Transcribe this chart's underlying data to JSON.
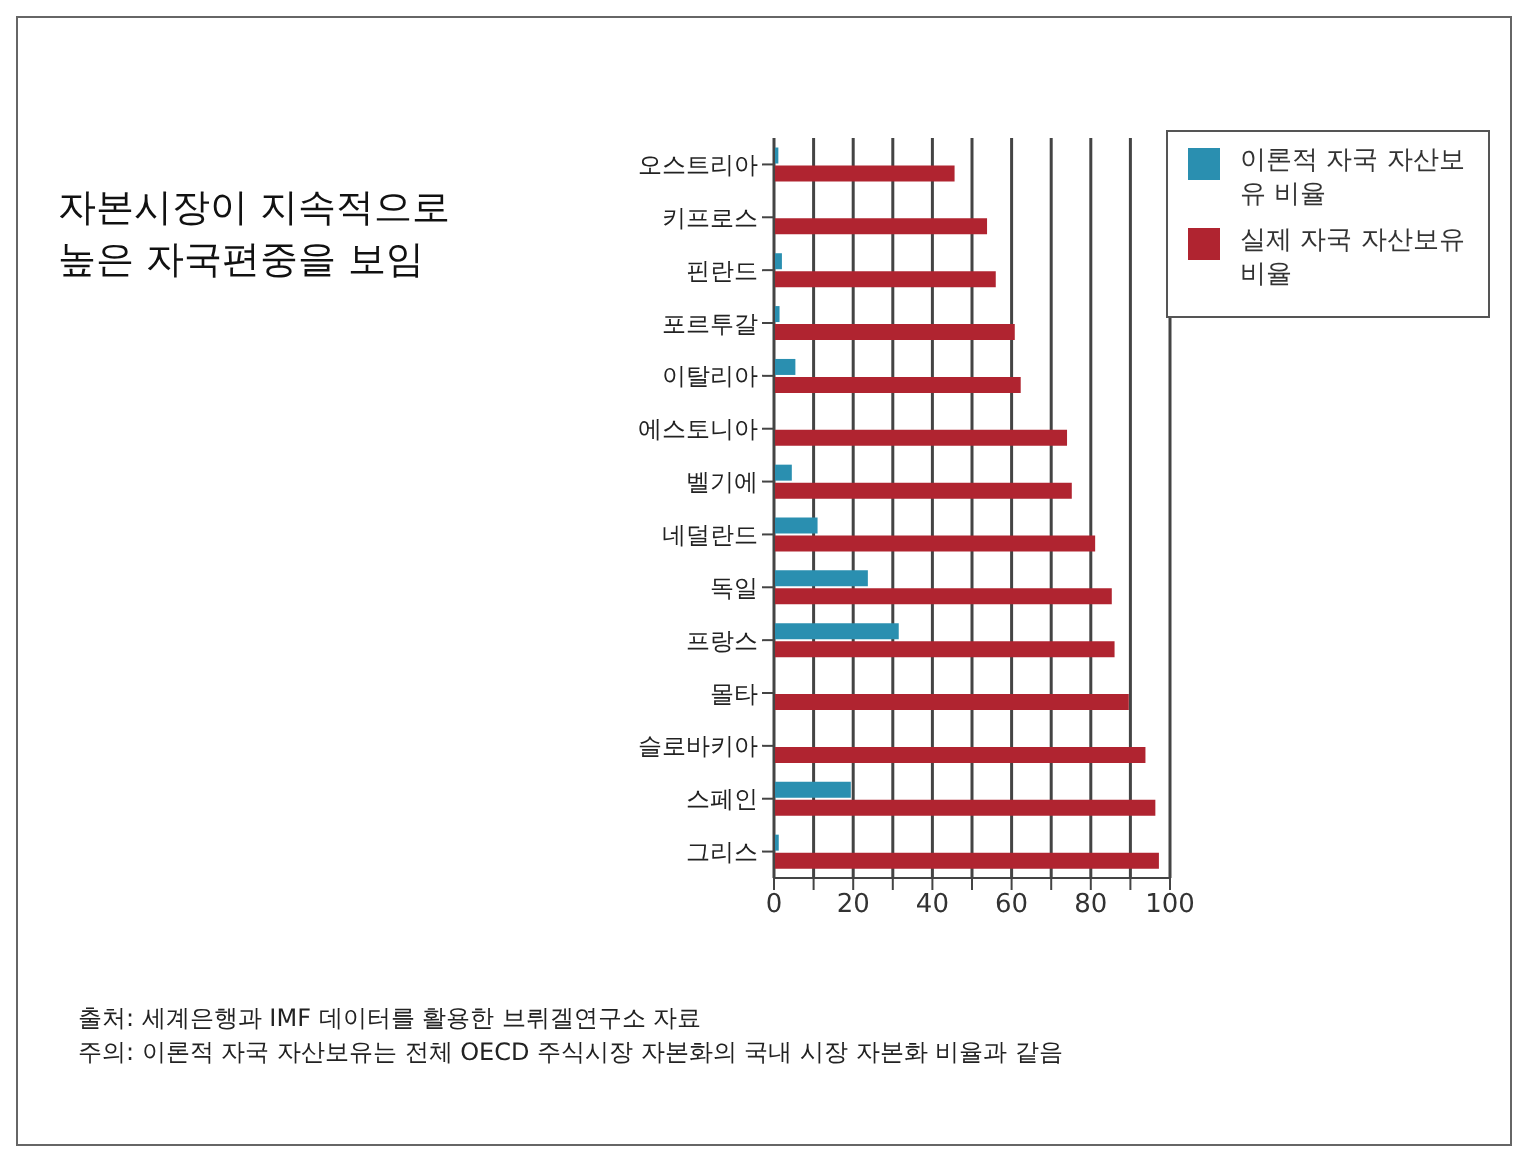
{
  "chart_data": {
    "type": "bar",
    "orientation": "horizontal",
    "title": "자본시장이 지속적으로 높은 자국편중을 보임",
    "categories": [
      "오스트리아",
      "키프로스",
      "핀란드",
      "포르투갈",
      "이탈리아",
      "에스토니아",
      "벨기에",
      "네덜란드",
      "독일",
      "프랑스",
      "몰타",
      "슬로바키아",
      "스페인",
      "그리스"
    ],
    "series": [
      {
        "name": "이론적 자국 자산보유 비율",
        "color": "#2a8fb0",
        "values": [
          1.1,
          null,
          2,
          1.4,
          5.4,
          null,
          4.5,
          11,
          23.7,
          31.5,
          null,
          null,
          19.4,
          1.2
        ]
      },
      {
        "name": "실제 자국 자산보유 비율",
        "color": "#b02430",
        "values": [
          45.6,
          53.8,
          56,
          60.8,
          62.3,
          74,
          75.2,
          81.1,
          85.3,
          86,
          89.6,
          93.8,
          96.3,
          97.2
        ]
      }
    ],
    "xlim": [
      0,
      100
    ],
    "xticks": [
      0,
      {
        "value": 10,
        "label": null
      },
      20,
      {
        "value": 30,
        "label": null
      },
      40,
      {
        "value": 50,
        "label": null
      },
      60,
      {
        "value": 70,
        "label": null
      },
      80,
      {
        "value": 90,
        "label": null
      },
      100
    ],
    "grid": "x",
    "legend": "top right",
    "annotations": [
      "출처: 세계은행과 IMF 데이터를 활용한 브뤼겔연구소 자료",
      "주의: 이론적 자국 자산보유는 전체 OECD 주식시장 자본화의 국내 시장 자본화 비율과 같음"
    ]
  }
}
